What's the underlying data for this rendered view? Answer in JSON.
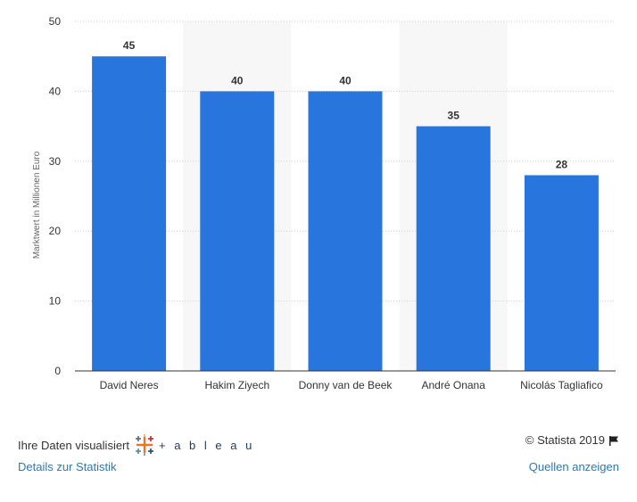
{
  "chart_data": {
    "type": "bar",
    "categories": [
      "David Neres",
      "Hakim Ziyech",
      "Donny van de Beek",
      "André Onana",
      "Nicolás Tagliafico"
    ],
    "values": [
      45,
      40,
      40,
      35,
      28
    ],
    "data_labels": [
      "45",
      "40",
      "40",
      "35",
      "28"
    ],
    "title": "",
    "xlabel": "",
    "ylabel": "Marktwert in Millionen Euro",
    "ylim": [
      0,
      50
    ],
    "yticks": [
      0,
      10,
      20,
      30,
      40,
      50
    ],
    "grid": true,
    "bar_color": "#2876dd",
    "alt_band_color": "#f7f7f7"
  },
  "footer": {
    "credits_text": "Ihre Daten visualisiert",
    "tableau_text": "+ a b l e a u",
    "copyright": "© Statista 2019",
    "details_link": "Details zur Statistik",
    "sources_link": "Quellen anzeigen",
    "link_color": "#2a7ab8",
    "icons": [
      "tableau-logo-icon",
      "flag-icon"
    ]
  }
}
